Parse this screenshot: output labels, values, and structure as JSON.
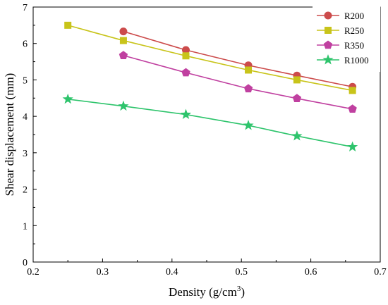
{
  "chart_data": {
    "type": "line",
    "xlabel": "Density (g/cm",
    "xlabel_sup": "3",
    "xlabel_end": ")",
    "ylabel": "Shear displacement (mm)",
    "xlim": [
      0.2,
      0.7
    ],
    "ylim": [
      0,
      7
    ],
    "xticks": [
      "0.2",
      "0.3",
      "0.4",
      "0.5",
      "0.6",
      "0.7"
    ],
    "yticks": [
      "0",
      "1",
      "2",
      "3",
      "4",
      "5",
      "6",
      "7"
    ],
    "grid": false,
    "legend_position": "top-right",
    "series": [
      {
        "name": "R200",
        "color": "#cc4b4b",
        "marker": "circle",
        "x": [
          0.33,
          0.42,
          0.51,
          0.58,
          0.66
        ],
        "y": [
          6.33,
          5.82,
          5.4,
          5.12,
          4.81
        ]
      },
      {
        "name": "R250",
        "color": "#c8c41a",
        "marker": "square",
        "x": [
          0.25,
          0.33,
          0.42,
          0.51,
          0.58,
          0.66
        ],
        "y": [
          6.5,
          6.08,
          5.66,
          5.27,
          5.0,
          4.71
        ]
      },
      {
        "name": "R350",
        "color": "#c040a0",
        "marker": "pentagon",
        "x": [
          0.33,
          0.42,
          0.51,
          0.58,
          0.66
        ],
        "y": [
          5.67,
          5.2,
          4.76,
          4.49,
          4.2
        ]
      },
      {
        "name": "R1000",
        "color": "#2ec46c",
        "marker": "star",
        "x": [
          0.25,
          0.33,
          0.42,
          0.51,
          0.58,
          0.66
        ],
        "y": [
          4.47,
          4.28,
          4.05,
          3.75,
          3.46,
          3.16
        ]
      }
    ]
  }
}
